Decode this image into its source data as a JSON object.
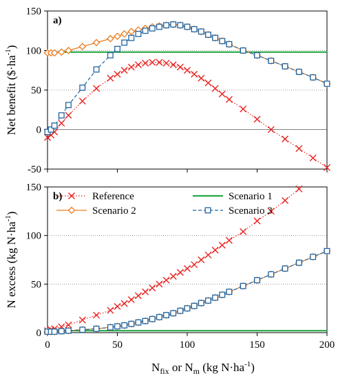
{
  "figure": {
    "xlabel_main": "N",
    "xlabel_sub1": "fix",
    "xlabel_or": " or  N",
    "xlabel_sub2": "m",
    "xlabel_units": " (kg N·ha",
    "xlabel_sup": "-1",
    "xlabel_close": ")"
  },
  "colors": {
    "reference": "#e8231f",
    "scenario1": "#27a844",
    "scenario2": "#ec7c1f",
    "scenario3": "#1f63a0",
    "grid": "#808080",
    "axis": "#000000"
  },
  "chart_data": [
    {
      "type": "line",
      "panel_label": "a)",
      "xlabel": "",
      "ylabel": "Net benefit ($·ha-1)",
      "ylabel_main": "Net benefit ($·ha",
      "ylabel_sup": "-1",
      "ylabel_close": ")",
      "xlim": [
        0,
        200
      ],
      "ylim": [
        -50,
        150
      ],
      "xticks": [
        "0",
        "50",
        "100",
        "150",
        "200"
      ],
      "yticks": [
        "-50",
        "0",
        "50",
        "100",
        "150"
      ],
      "grid": true,
      "series": [
        {
          "name": "Reference",
          "marker": "x",
          "line": "dotted",
          "color": "#e8231f",
          "x": [
            0,
            2.5,
            5,
            10,
            15,
            25,
            35,
            45,
            50,
            55,
            60,
            65,
            70,
            75,
            80,
            85,
            90,
            95,
            100,
            105,
            110,
            115,
            120,
            125,
            130,
            140,
            150,
            160,
            170,
            180,
            190,
            200
          ],
          "y": [
            -10,
            -7,
            -3,
            8,
            18,
            36,
            52,
            65,
            70,
            75,
            79,
            82,
            84,
            85,
            85,
            84,
            82,
            79,
            75,
            70,
            65,
            59,
            52,
            45,
            38,
            26,
            13,
            0,
            -12,
            -24,
            -36,
            -48
          ]
        },
        {
          "name": "Scenario 1",
          "marker": "none",
          "line": "solid",
          "color": "#27a844",
          "x": [
            0,
            200
          ],
          "y": [
            98,
            98
          ]
        },
        {
          "name": "Scenario 2",
          "marker": "diamond",
          "line": "solid",
          "color": "#ec7c1f",
          "x": [
            0,
            2.5,
            5,
            10,
            15,
            25,
            35,
            45,
            50,
            55,
            60,
            65,
            70,
            75,
            80,
            85,
            90,
            95,
            100,
            105,
            110,
            115,
            120,
            125,
            130,
            140,
            150,
            160,
            170,
            180,
            190,
            200
          ],
          "y": [
            97,
            97,
            97,
            98,
            100,
            105,
            110,
            115,
            118,
            121,
            124,
            126,
            128,
            130,
            131,
            132,
            133,
            132,
            130,
            127,
            124,
            120,
            116,
            112,
            108,
            100,
            94,
            87,
            80,
            73,
            66,
            58
          ]
        },
        {
          "name": "Scenario 3",
          "marker": "square",
          "line": "dashed",
          "color": "#1f63a0",
          "x": [
            0,
            2.5,
            5,
            10,
            15,
            25,
            35,
            45,
            50,
            55,
            60,
            65,
            70,
            75,
            80,
            85,
            90,
            95,
            100,
            105,
            110,
            115,
            120,
            125,
            130,
            140,
            150,
            160,
            170,
            180,
            190,
            200
          ],
          "y": [
            -3,
            0,
            5,
            18,
            31,
            53,
            76,
            94,
            102,
            110,
            116,
            121,
            125,
            128,
            130,
            132,
            133,
            132,
            130,
            127,
            124,
            120,
            116,
            112,
            108,
            100,
            94,
            87,
            80,
            73,
            66,
            58
          ]
        }
      ]
    },
    {
      "type": "line",
      "panel_label": "b)",
      "xlabel": "Nfix or Nm (kg N·ha-1)",
      "ylabel": "N excess (kg N·ha-1)",
      "ylabel_main": "N excess  (kg N·ha",
      "ylabel_sup": "-1",
      "ylabel_close": ")",
      "xlim": [
        0,
        200
      ],
      "ylim": [
        0,
        150
      ],
      "xticks": [
        "0",
        "50",
        "100",
        "150",
        "200"
      ],
      "yticks": [
        "0",
        "50",
        "100",
        "150"
      ],
      "grid": true,
      "legend": {
        "placement": "top",
        "entries": [
          "Reference",
          "Scenario 1",
          "Scenario 2",
          "Scenario 3"
        ]
      },
      "series": [
        {
          "name": "Reference",
          "marker": "x",
          "line": "dotted",
          "color": "#e8231f",
          "x": [
            0,
            2.5,
            5,
            10,
            15,
            25,
            35,
            45,
            50,
            55,
            60,
            65,
            70,
            75,
            80,
            85,
            90,
            95,
            100,
            105,
            110,
            115,
            120,
            125,
            130,
            140,
            150,
            160,
            170,
            180
          ],
          "y": [
            2,
            3,
            4,
            6,
            8,
            13,
            18,
            23,
            27,
            30,
            34,
            38,
            42,
            46,
            50,
            54,
            58,
            62,
            66,
            70,
            75,
            80,
            85,
            90,
            95,
            104,
            115,
            125,
            136,
            148
          ]
        },
        {
          "name": "Scenario 1",
          "marker": "none",
          "line": "solid",
          "color": "#27a844",
          "x": [
            0,
            200
          ],
          "y": [
            2,
            2
          ]
        },
        {
          "name": "Scenario 2",
          "marker": "diamond",
          "line": "solid",
          "color": "#ec7c1f",
          "x": [
            0,
            2.5,
            5,
            10,
            15,
            25,
            35,
            45,
            50,
            55,
            60,
            65,
            70,
            75,
            80,
            85,
            90,
            95,
            100,
            105,
            110,
            115,
            120,
            125,
            130,
            140,
            150,
            160,
            170,
            180,
            190,
            200
          ],
          "y": [
            1,
            1,
            1,
            1.5,
            2,
            3,
            4,
            5.5,
            6.5,
            7.5,
            9,
            10.5,
            12,
            14,
            16,
            18,
            20,
            22.5,
            25,
            27.5,
            30.5,
            33,
            36,
            39,
            42,
            48,
            54,
            60,
            66,
            72,
            78,
            84
          ]
        },
        {
          "name": "Scenario 3",
          "marker": "square",
          "line": "dashed",
          "color": "#1f63a0",
          "x": [
            0,
            2.5,
            5,
            10,
            15,
            25,
            35,
            45,
            50,
            55,
            60,
            65,
            70,
            75,
            80,
            85,
            90,
            95,
            100,
            105,
            110,
            115,
            120,
            125,
            130,
            140,
            150,
            160,
            170,
            180,
            190,
            200
          ],
          "y": [
            1,
            1,
            1,
            1.5,
            2,
            3,
            4,
            5.5,
            6.5,
            7.5,
            9,
            10.5,
            12,
            14,
            16,
            18,
            20,
            22.5,
            25,
            27.5,
            30.5,
            33,
            36,
            39,
            42,
            48,
            54,
            60,
            66,
            72,
            78,
            84
          ]
        }
      ]
    }
  ]
}
